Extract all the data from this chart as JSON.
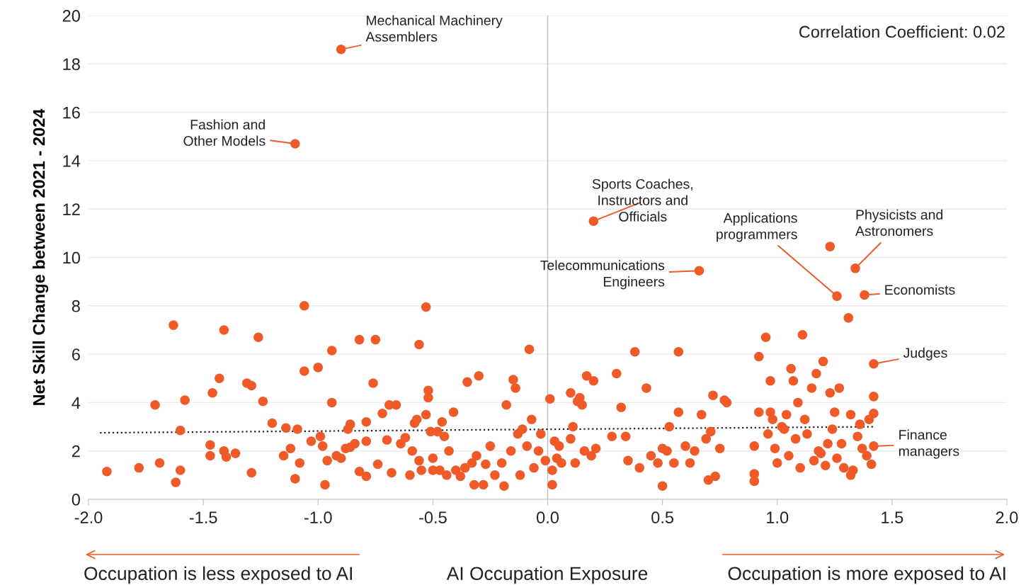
{
  "chart_data": {
    "type": "scatter",
    "xlabel": "AI Occupation Exposure",
    "ylabel": "Net Skill Change between 2021 - 2024",
    "xlim": [
      -2.0,
      2.0
    ],
    "ylim": [
      0,
      20
    ],
    "xticks": [
      {
        "value": -2.0,
        "label": "-2.0"
      },
      {
        "value": -1.5,
        "label": "-1.5"
      },
      {
        "value": -1.0,
        "label": "-1.0"
      },
      {
        "value": -0.5,
        "label": "-0.5"
      },
      {
        "value": 0.0,
        "label": "0.0"
      },
      {
        "value": 0.5,
        "label": "0.5"
      },
      {
        "value": 1.0,
        "label": "1.0"
      },
      {
        "value": 1.5,
        "label": "1.5"
      },
      {
        "value": 2.0,
        "label": "2.0"
      }
    ],
    "yticks": [
      0,
      2,
      4,
      6,
      8,
      10,
      12,
      14,
      16,
      18,
      20
    ],
    "grid": "y",
    "marker": "circle",
    "legend": false,
    "ref_lines": [
      {
        "axis": "x",
        "value": 0,
        "color": "#b8bec5"
      }
    ],
    "series": [
      {
        "color": "#f05a28",
        "x": [
          -1.92,
          -1.78,
          -1.71,
          -1.69,
          -1.63,
          -1.62,
          -1.6,
          -1.6,
          -1.58,
          -1.47,
          -1.47,
          -1.46,
          -1.43,
          -1.41,
          -1.41,
          -1.4,
          -1.36,
          -1.31,
          -1.29,
          -1.29,
          -1.26,
          -1.24,
          -1.2,
          -1.15,
          -1.14,
          -1.12,
          -1.1,
          -1.09,
          -1.08,
          -1.06,
          -1.06,
          -1.03,
          -1.0,
          -0.99,
          -0.98,
          -0.97,
          -0.96,
          -0.94,
          -0.94,
          -0.92,
          -0.9,
          -0.88,
          -0.87,
          -0.86,
          -0.86,
          -0.84,
          -0.82,
          -0.82,
          -0.79,
          -0.79,
          -0.79,
          -0.76,
          -0.75,
          -0.74,
          -0.72,
          -0.7,
          -0.69,
          -0.68,
          -0.66,
          -0.64,
          -0.62,
          -0.6,
          -0.59,
          -0.58,
          -0.57,
          -0.56,
          -0.56,
          -0.55,
          -0.53,
          -0.53,
          -0.52,
          -0.52,
          -0.51,
          -0.5,
          -0.5,
          -0.48,
          -0.47,
          -0.46,
          -0.45,
          -0.44,
          -0.43,
          -0.41,
          -0.4,
          -0.38,
          -0.36,
          -0.35,
          -0.33,
          -0.32,
          -0.31,
          -0.3,
          -0.28,
          -0.27,
          -0.25,
          -0.23,
          -0.2,
          -0.19,
          -0.18,
          -0.16,
          -0.15,
          -0.14,
          -0.13,
          -0.12,
          -0.11,
          -0.09,
          -0.08,
          -0.07,
          -0.06,
          -0.04,
          -0.03,
          -0.01,
          0.01,
          0.02,
          0.02,
          0.03,
          0.04,
          0.05,
          0.06,
          0.1,
          0.1,
          0.11,
          0.12,
          0.13,
          0.14,
          0.15,
          0.16,
          0.17,
          0.19,
          0.2,
          0.21,
          0.28,
          0.3,
          0.32,
          0.34,
          0.35,
          0.38,
          0.4,
          0.43,
          0.45,
          0.48,
          0.5,
          0.5,
          0.52,
          0.53,
          0.55,
          0.57,
          0.57,
          0.6,
          0.62,
          0.64,
          0.67,
          0.69,
          0.7,
          0.71,
          0.72,
          0.73,
          0.75,
          0.77,
          0.78,
          0.9,
          0.9,
          0.9,
          0.92,
          0.92,
          0.95,
          0.96,
          0.97,
          0.97,
          0.98,
          0.99,
          1.0,
          1.02,
          1.03,
          1.04,
          1.05,
          1.06,
          1.07,
          1.08,
          1.09,
          1.1,
          1.11,
          1.12,
          1.13,
          1.15,
          1.16,
          1.17,
          1.18,
          1.19,
          1.2,
          1.21,
          1.22,
          1.23,
          1.23,
          1.24,
          1.25,
          1.26,
          1.27,
          1.28,
          1.29,
          1.31,
          1.32,
          1.32,
          1.33,
          1.35,
          1.36,
          1.37,
          1.39,
          1.4,
          1.41,
          1.42,
          1.42,
          -0.9,
          -1.1,
          0.2,
          0.66,
          1.26,
          1.34,
          1.38,
          1.42,
          1.42
        ],
        "values": [
          1.15,
          1.3,
          3.9,
          1.5,
          7.2,
          0.7,
          1.2,
          2.85,
          4.1,
          2.25,
          1.8,
          4.4,
          5.0,
          7.0,
          2.0,
          1.75,
          1.9,
          4.8,
          4.7,
          1.1,
          6.7,
          4.05,
          3.15,
          1.8,
          2.95,
          2.1,
          0.85,
          2.9,
          1.5,
          8.0,
          5.3,
          2.4,
          5.45,
          2.6,
          2.2,
          0.6,
          1.6,
          6.15,
          4.0,
          1.8,
          1.7,
          2.1,
          2.9,
          3.1,
          2.15,
          2.3,
          6.6,
          1.15,
          2.4,
          3.2,
          0.95,
          4.8,
          6.6,
          1.45,
          3.55,
          2.45,
          3.9,
          1.1,
          3.9,
          2.3,
          2.55,
          1.0,
          2.0,
          3.15,
          3.3,
          6.4,
          1.6,
          1.2,
          3.5,
          7.95,
          4.5,
          4.2,
          2.8,
          1.7,
          1.2,
          2.8,
          1.2,
          3.2,
          2.6,
          1.0,
          2.0,
          3.6,
          1.2,
          0.95,
          1.3,
          4.85,
          1.5,
          0.6,
          1.8,
          5.1,
          0.6,
          1.45,
          2.2,
          1.0,
          1.5,
          0.55,
          3.9,
          2.0,
          4.95,
          4.6,
          2.7,
          1.0,
          2.9,
          2.2,
          6.2,
          3.3,
          1.3,
          2.0,
          2.7,
          1.6,
          4.15,
          1.2,
          0.6,
          2.4,
          1.7,
          2.2,
          1.5,
          4.4,
          2.5,
          3.0,
          1.5,
          4.05,
          4.2,
          3.9,
          2.0,
          5.1,
          1.8,
          4.9,
          2.1,
          2.6,
          5.2,
          3.8,
          2.6,
          1.6,
          6.1,
          1.3,
          4.6,
          1.8,
          1.5,
          2.1,
          0.55,
          2.0,
          3.0,
          1.5,
          6.1,
          3.6,
          2.2,
          1.5,
          2.0,
          3.5,
          2.5,
          0.8,
          2.8,
          4.3,
          0.95,
          2.1,
          4.1,
          4.0,
          1.05,
          0.75,
          2.2,
          5.9,
          3.6,
          6.7,
          2.7,
          4.9,
          3.6,
          3.3,
          2.1,
          1.5,
          3.0,
          2.9,
          3.5,
          1.8,
          5.4,
          4.9,
          2.5,
          4.0,
          1.3,
          6.8,
          3.3,
          2.7,
          4.6,
          1.6,
          5.2,
          2.0,
          1.9,
          5.7,
          1.4,
          2.3,
          10.45,
          4.4,
          2.9,
          3.6,
          1.7,
          4.6,
          2.3,
          1.3,
          7.5,
          3.5,
          1.0,
          1.2,
          2.6,
          3.1,
          2.1,
          1.8,
          3.3,
          1.45,
          4.25,
          3.55,
          18.6,
          14.7,
          11.5,
          9.45,
          8.4,
          9.55,
          8.45,
          5.6,
          2.2
        ]
      },
      {
        "type": "line",
        "color": "#222222",
        "line_style": "dotted",
        "marker": "none",
        "x": [
          -1.95,
          1.42
        ],
        "values": [
          2.75,
          3.0
        ]
      }
    ],
    "annotations": [
      "Correlation Coefficient: 0.02",
      "Occupation is less exposed to AI",
      "Occupation is more exposed to AI",
      {
        "text": "Mechanical Machinery\nAssemblers",
        "x": -0.9,
        "y": 18.6
      },
      {
        "text": "Fashion and\nOther Models",
        "x": -1.1,
        "y": 14.7
      },
      {
        "text": "Sports Coaches,\nInstructors and\nOfficials",
        "x": 0.2,
        "y": 11.5
      },
      {
        "text": "Telecommunications\nEngineers",
        "x": 0.66,
        "y": 9.45
      },
      {
        "text": "Applications\nprogrammers",
        "x": 1.26,
        "y": 8.4
      },
      {
        "text": "Physicists and\nAstronomers",
        "x": 1.34,
        "y": 9.55
      },
      {
        "text": "Economists",
        "x": 1.38,
        "y": 8.45
      },
      {
        "text": "Judges",
        "x": 1.42,
        "y": 5.6
      },
      {
        "text": "Finance\nmanagers",
        "x": 1.42,
        "y": 2.2
      }
    ]
  }
}
